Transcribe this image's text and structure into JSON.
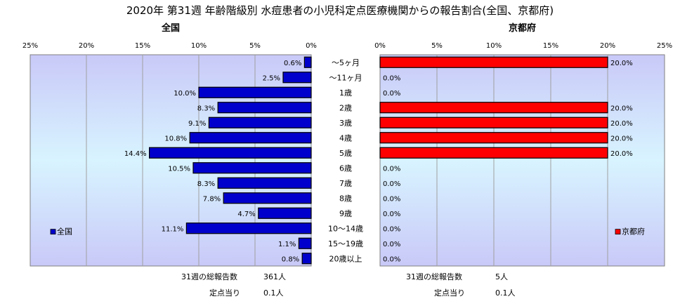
{
  "title": "2020年 第31週 年齢階級別 水痘患者の小児科定点医療機関からの報告割合(全国、京都府)",
  "chart_data": [
    {
      "type": "bar",
      "title": "全国",
      "orientation": "horizontal-reversed",
      "categories": [
        "～5ヶ月",
        "～11ヶ月",
        "1歳",
        "2歳",
        "3歳",
        "4歳",
        "5歳",
        "6歳",
        "7歳",
        "8歳",
        "9歳",
        "10～14歳",
        "15～19歳",
        "20歳以上"
      ],
      "series": [
        {
          "name": "全国",
          "color": "#0000cc",
          "values": [
            0.6,
            2.5,
            10.0,
            8.3,
            9.1,
            10.8,
            14.4,
            10.5,
            8.3,
            7.8,
            4.7,
            11.1,
            1.1,
            0.8
          ]
        }
      ],
      "xlim": [
        0,
        25
      ],
      "ticks": [
        "25%",
        "20%",
        "15%",
        "10%",
        "5%",
        "0%"
      ],
      "grid": true,
      "legend": "bottom-left",
      "footer": {
        "total_label": "31週の総報告数",
        "total_value": "361人",
        "per_label": "定点当り",
        "per_value": "0.1人"
      }
    },
    {
      "type": "bar",
      "title": "京都府",
      "orientation": "horizontal",
      "categories": [
        "～5ヶ月",
        "～11ヶ月",
        "1歳",
        "2歳",
        "3歳",
        "4歳",
        "5歳",
        "6歳",
        "7歳",
        "8歳",
        "9歳",
        "10～14歳",
        "15～19歳",
        "20歳以上"
      ],
      "series": [
        {
          "name": "京都府",
          "color": "#ff0000",
          "values": [
            20.0,
            0.0,
            0.0,
            20.0,
            20.0,
            20.0,
            20.0,
            0.0,
            0.0,
            0.0,
            0.0,
            0.0,
            0.0,
            0.0
          ]
        }
      ],
      "xlim": [
        0,
        25
      ],
      "ticks": [
        "0%",
        "5%",
        "10%",
        "15%",
        "20%",
        "25%"
      ],
      "grid": true,
      "legend": "bottom-right",
      "footer": {
        "total_label": "31週の総報告数",
        "total_value": "5人",
        "per_label": "定点当り",
        "per_value": "0.1人"
      }
    }
  ]
}
